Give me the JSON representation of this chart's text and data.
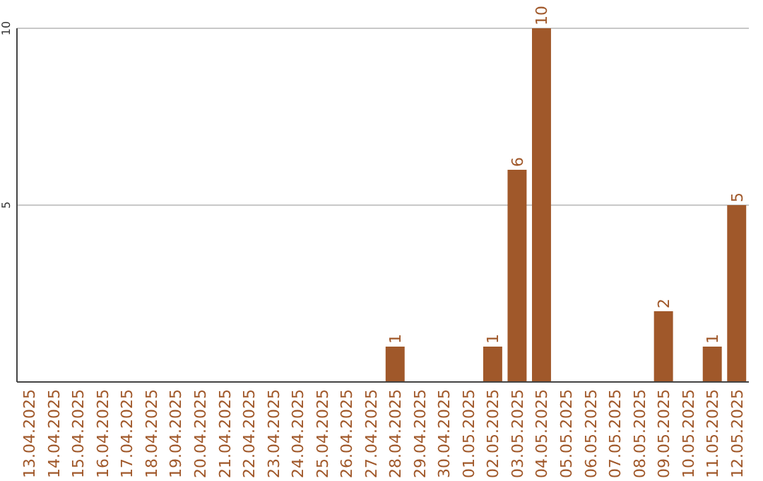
{
  "chart_data": {
    "type": "bar",
    "categories": [
      "13.04.2025",
      "14.04.2025",
      "15.04.2025",
      "16.04.2025",
      "17.04.2025",
      "18.04.2025",
      "19.04.2025",
      "20.04.2025",
      "21.04.2025",
      "22.04.2025",
      "23.04.2025",
      "24.04.2025",
      "25.04.2025",
      "26.04.2025",
      "27.04.2025",
      "28.04.2025",
      "29.04.2025",
      "30.04.2025",
      "01.05.2025",
      "02.05.2025",
      "03.05.2025",
      "04.05.2025",
      "05.05.2025",
      "06.05.2025",
      "07.05.2025",
      "08.05.2025",
      "09.05.2025",
      "10.05.2025",
      "11.05.2025",
      "12.05.2025"
    ],
    "values": [
      0,
      0,
      0,
      0,
      0,
      0,
      0,
      0,
      0,
      0,
      0,
      0,
      0,
      0,
      0,
      1,
      0,
      0,
      0,
      1,
      6,
      10,
      0,
      0,
      0,
      0,
      2,
      0,
      1,
      5
    ],
    "value_labels": [
      null,
      null,
      null,
      null,
      null,
      null,
      null,
      null,
      null,
      null,
      null,
      null,
      null,
      null,
      null,
      "1",
      null,
      null,
      null,
      "1",
      "6",
      "10",
      null,
      null,
      null,
      null,
      "2",
      null,
      "1",
      "5"
    ],
    "color": "#a0582a",
    "ylim": [
      0,
      10
    ],
    "yticks": [
      5,
      10
    ],
    "grid": "y"
  }
}
